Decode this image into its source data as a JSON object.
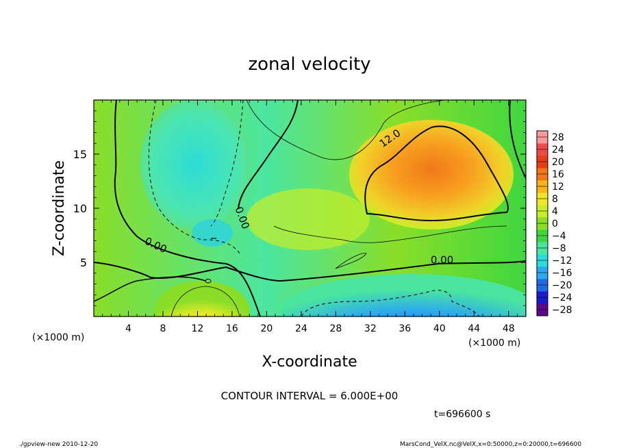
{
  "chart_data": {
    "type": "heatmap",
    "title": "zonal velocity",
    "xlabel": "X-coordinate",
    "ylabel": "Z-coordinate",
    "x_units_label": "(×1000 m)",
    "xlim": [
      0,
      50
    ],
    "ylim": [
      0,
      20
    ],
    "x_ticks": [
      "4",
      "8",
      "12",
      "16",
      "20",
      "24",
      "28",
      "32",
      "36",
      "40",
      "44",
      "48"
    ],
    "x_tick_values": [
      4,
      8,
      12,
      16,
      20,
      24,
      28,
      32,
      36,
      40,
      44,
      48
    ],
    "y_ticks": [
      "5",
      "10",
      "15"
    ],
    "y_tick_values": [
      5,
      10,
      15
    ],
    "colorbar": {
      "labels": [
        "28",
        "24",
        "20",
        "16",
        "12",
        "8",
        "4",
        "0",
        "−4",
        "−8",
        "−12",
        "−16",
        "−20",
        "−24",
        "−28"
      ],
      "values": [
        28,
        24,
        20,
        16,
        12,
        8,
        4,
        0,
        -4,
        -8,
        -12,
        -16,
        -20,
        -24,
        -28
      ],
      "range": [
        -30,
        30
      ]
    },
    "contour_labels": [
      {
        "text": "12.0",
        "x": 34.5,
        "y": 16.2
      },
      {
        "text": "0.00",
        "x": 7.0,
        "y": 6.3
      },
      {
        "text": "0.00",
        "x": 16.8,
        "y": 9.0
      },
      {
        "text": "0.00",
        "x": 40.3,
        "y": 4.9
      }
    ],
    "contour_interval_text": "CONTOUR INTERVAL = 6.000E+00",
    "time_text": "t=696600 s"
  },
  "footer": {
    "left": "./gpview-new  2010-12-20",
    "right": "MarsCond_VelX.nc@VelX,x=0:50000,z=0:20000,t=696600"
  },
  "colors": {
    "cmap": [
      "#5a0a8a",
      "#1a1ad0",
      "#1e6ae6",
      "#2aa8f0",
      "#2adcdc",
      "#4ae6a0",
      "#40d640",
      "#8ade28",
      "#c8ee28",
      "#f0e628",
      "#f8b418",
      "#f07818",
      "#e83c14",
      "#f04a4a",
      "#f89a9a"
    ]
  }
}
